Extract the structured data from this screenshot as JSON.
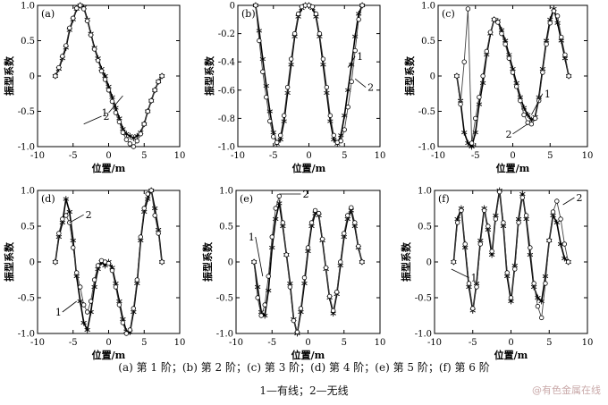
{
  "caption": {
    "panels": "(a)  第 1 阶；(b)  第 2 阶；(c)  第 3 阶；(d)  第 4 阶；(e)  第 5 阶；(f)  第 6 阶",
    "legend": "1—有线；2—无线"
  },
  "watermark": "@有色金属在线",
  "chart_data": [
    {
      "type": "line",
      "tag": "(a)",
      "xlabel": "位置/m",
      "ylabel": "振型系数",
      "xlim": [
        -10,
        10
      ],
      "ylim": [
        -1,
        1
      ],
      "xticks": [
        -10,
        -5,
        0,
        5,
        10
      ],
      "yticks": [
        -1.0,
        -0.5,
        0,
        0.5,
        1.0
      ],
      "series": [
        {
          "name": "1",
          "marker": "star",
          "x": [
            -7.5,
            -7,
            -6.5,
            -6,
            -5.5,
            -5,
            -4.5,
            -4,
            -3.5,
            -3,
            -2.5,
            -2,
            -1.5,
            -1,
            -0.5,
            0,
            0.5,
            1,
            1.5,
            2,
            2.5,
            3,
            3.5,
            4,
            4.5,
            5,
            5.5,
            6,
            6.5,
            7,
            7.5
          ],
          "y": [
            0,
            0.1,
            0.25,
            0.4,
            0.65,
            0.8,
            0.95,
            1.0,
            0.97,
            0.8,
            0.6,
            0.4,
            0.25,
            0.1,
            0,
            -0.15,
            -0.3,
            -0.45,
            -0.6,
            -0.75,
            -0.82,
            -0.85,
            -0.88,
            -0.85,
            -0.8,
            -0.68,
            -0.5,
            -0.35,
            -0.2,
            -0.08,
            0
          ]
        },
        {
          "name": "2",
          "marker": "circle",
          "x": [
            -7.5,
            -7,
            -6.5,
            -6,
            -5.5,
            -5,
            -4.5,
            -4,
            -3.5,
            -3,
            -2.5,
            -2,
            -1.5,
            -1,
            -0.5,
            0,
            0.5,
            1,
            1.5,
            2,
            2.5,
            3,
            3.5,
            4,
            4.5,
            5,
            5.5,
            6,
            6.5,
            7,
            7.5
          ],
          "y": [
            0,
            0.12,
            0.28,
            0.43,
            0.68,
            0.82,
            0.96,
            1.0,
            0.95,
            0.78,
            0.58,
            0.38,
            0.22,
            0.07,
            -0.05,
            -0.2,
            -0.36,
            -0.52,
            -0.65,
            -0.8,
            -0.9,
            -0.96,
            -1.0,
            -0.92,
            -0.82,
            -0.68,
            -0.5,
            -0.35,
            -0.2,
            -0.08,
            0
          ]
        }
      ],
      "labels": [
        {
          "text": "1",
          "x": 2.0,
          "y": -0.28,
          "lx": 0.0,
          "ly": -0.52
        },
        {
          "text": "2",
          "x": -3.5,
          "y": -0.68,
          "lx": -1.0,
          "ly": -0.57
        }
      ]
    },
    {
      "type": "line",
      "tag": "(b)",
      "xlabel": "位置/m",
      "ylabel": "振型系数",
      "xlim": [
        -10,
        10
      ],
      "ylim": [
        -1,
        0
      ],
      "xticks": [
        -10,
        -5,
        0,
        5,
        10
      ],
      "yticks": [
        -1.0,
        -0.8,
        -0.6,
        -0.4,
        -0.2,
        0
      ],
      "series": [
        {
          "name": "1",
          "marker": "star",
          "x": [
            -7.5,
            -7,
            -6.5,
            -6,
            -5.5,
            -5,
            -4.5,
            -4,
            -3.5,
            -3,
            -2.5,
            -2,
            -1.5,
            -1,
            -0.5,
            0,
            0.5,
            1,
            1.5,
            2,
            2.5,
            3,
            3.5,
            4,
            4.5,
            5,
            5.5,
            6,
            6.5,
            7,
            7.5
          ],
          "y": [
            0,
            -0.18,
            -0.38,
            -0.57,
            -0.75,
            -0.9,
            -0.98,
            -0.95,
            -0.82,
            -0.62,
            -0.42,
            -0.22,
            -0.08,
            -0.02,
            0,
            0,
            -0.02,
            -0.08,
            -0.22,
            -0.42,
            -0.62,
            -0.82,
            -0.95,
            -0.98,
            -0.92,
            -0.78,
            -0.6,
            -0.42,
            -0.22,
            -0.06,
            0
          ]
        },
        {
          "name": "2",
          "marker": "circle",
          "x": [
            -7.5,
            -7,
            -6.5,
            -6,
            -5.5,
            -5,
            -4.5,
            -4,
            -3.5,
            -3,
            -2.5,
            -2,
            -1.5,
            -1,
            -0.5,
            0,
            0.5,
            1,
            1.5,
            2,
            2.5,
            3,
            3.5,
            4,
            4.5,
            5,
            5.5,
            6,
            6.5,
            7,
            7.5
          ],
          "y": [
            0,
            -0.25,
            -0.47,
            -0.65,
            -0.82,
            -0.93,
            -0.97,
            -0.92,
            -0.78,
            -0.58,
            -0.38,
            -0.2,
            -0.06,
            -0.01,
            0,
            0,
            -0.01,
            -0.06,
            -0.2,
            -0.38,
            -0.58,
            -0.78,
            -0.92,
            -0.97,
            -0.96,
            -0.88,
            -0.72,
            -0.54,
            -0.32,
            -0.1,
            0
          ]
        }
      ],
      "labels": [
        {
          "text": "1",
          "x": 5.5,
          "y": -0.44,
          "lx": 6.5,
          "ly": -0.36
        },
        {
          "text": "2",
          "x": 6.5,
          "y": -0.52,
          "lx": 8.0,
          "ly": -0.58
        }
      ]
    },
    {
      "type": "line",
      "tag": "(c)",
      "xlabel": "位置/m",
      "ylabel": "振型系数",
      "xlim": [
        -10,
        10
      ],
      "ylim": [
        -1,
        1
      ],
      "xticks": [
        -10,
        -5,
        0,
        5,
        10
      ],
      "yticks": [
        -1.0,
        -0.5,
        0,
        0.5,
        1.0
      ],
      "series": [
        {
          "name": "1",
          "marker": "star",
          "x": [
            -7.5,
            -7,
            -6.5,
            -6,
            -5.5,
            -5,
            -4.5,
            -4,
            -3.5,
            -3,
            -2.5,
            -2,
            -1.5,
            -1,
            -0.5,
            0,
            0.5,
            1,
            1.5,
            2,
            2.5,
            3,
            3.5,
            4,
            4.5,
            5,
            5.5,
            6,
            6.5,
            7,
            7.5
          ],
          "y": [
            0,
            -0.35,
            -0.8,
            -0.95,
            -1.0,
            -0.8,
            -0.4,
            -0.1,
            0.3,
            0.6,
            0.8,
            0.78,
            0.65,
            0.5,
            0.3,
            0.1,
            -0.1,
            -0.3,
            -0.45,
            -0.55,
            -0.62,
            -0.58,
            -0.3,
            0.1,
            0.5,
            0.8,
            0.95,
            0.75,
            0.5,
            0.25,
            0
          ]
        },
        {
          "name": "2",
          "marker": "circle",
          "x": [
            -7.5,
            -7,
            -6.5,
            -6,
            -5.5,
            -5,
            -4.5,
            -4,
            -3.5,
            -3,
            -2.5,
            -2,
            -1.5,
            -1,
            -0.5,
            0,
            0.5,
            1,
            1.5,
            2,
            2.5,
            3,
            3.5,
            4,
            4.5,
            5,
            5.5,
            6,
            6.5,
            7,
            7.5
          ],
          "y": [
            0,
            -0.4,
            0.2,
            0.95,
            -0.95,
            -0.6,
            -0.3,
            0,
            0.35,
            0.62,
            0.8,
            0.76,
            0.6,
            0.45,
            0.25,
            0.05,
            -0.15,
            -0.35,
            -0.55,
            -0.66,
            -0.68,
            -0.6,
            -0.35,
            0.05,
            0.45,
            0.75,
            0.92,
            0.85,
            0.55,
            0.3,
            0
          ]
        }
      ],
      "labels": [
        {
          "text": "1",
          "x": 2.5,
          "y": -0.55,
          "lx": 4.0,
          "ly": -0.25
        },
        {
          "text": "2",
          "x": 2.0,
          "y": -0.68,
          "lx": 0.0,
          "ly": -0.82
        }
      ]
    },
    {
      "type": "line",
      "tag": "(d)",
      "xlabel": "位置/m",
      "ylabel": "振型系数",
      "xlim": [
        -10,
        10
      ],
      "ylim": [
        -1,
        1
      ],
      "xticks": [
        -10,
        -5,
        0,
        5,
        10
      ],
      "yticks": [
        -1.0,
        -0.5,
        0,
        0.5,
        1.0
      ],
      "series": [
        {
          "name": "1",
          "marker": "star",
          "x": [
            -7.5,
            -7,
            -6.5,
            -6,
            -5.5,
            -5,
            -4.5,
            -4,
            -3.5,
            -3,
            -2.5,
            -2,
            -1.5,
            -1,
            -0.5,
            0,
            0.5,
            1,
            1.5,
            2,
            2.5,
            3,
            3.5,
            4,
            4.5,
            5,
            5.5,
            6,
            6.5,
            7,
            7.5
          ],
          "y": [
            0,
            0.35,
            0.55,
            0.88,
            0.7,
            0.3,
            -0.2,
            -0.55,
            -0.85,
            -0.95,
            -0.7,
            -0.35,
            -0.1,
            0,
            -0.05,
            0,
            -0.08,
            -0.3,
            -0.55,
            -0.8,
            -0.97,
            -0.98,
            -0.7,
            -0.3,
            0.3,
            0.7,
            0.88,
            1.0,
            0.75,
            0.45,
            0
          ]
        },
        {
          "name": "2",
          "marker": "circle",
          "x": [
            -7.5,
            -7,
            -6.5,
            -6,
            -5.5,
            -5,
            -4.5,
            -4,
            -3.5,
            -3,
            -2.5,
            -2,
            -1.5,
            -1,
            -0.5,
            0,
            0.5,
            1,
            1.5,
            2,
            2.5,
            3,
            3.5,
            4,
            4.5,
            5,
            5.5,
            6,
            6.5,
            7,
            7.5
          ],
          "y": [
            0,
            0.4,
            0.6,
            0.65,
            0.55,
            0.2,
            -0.15,
            -0.35,
            -0.6,
            -0.7,
            -0.55,
            -0.25,
            -0.05,
            0.02,
            0,
            -0.02,
            -0.12,
            -0.35,
            -0.6,
            -0.85,
            -1.0,
            -0.95,
            -0.65,
            -0.25,
            0.35,
            0.75,
            0.95,
            1.0,
            0.65,
            0.4,
            0
          ]
        }
      ],
      "labels": [
        {
          "text": "1",
          "x": -4.5,
          "y": -0.55,
          "lx": -6.5,
          "ly": -0.7
        },
        {
          "text": "2",
          "x": -5.5,
          "y": 0.55,
          "lx": -3.5,
          "ly": 0.66
        }
      ]
    },
    {
      "type": "line",
      "tag": "(e)",
      "xlabel": "位置/m",
      "ylabel": "振型系数",
      "xlim": [
        -10,
        10
      ],
      "ylim": [
        -1,
        1
      ],
      "xticks": [
        -10,
        -5,
        0,
        5,
        10
      ],
      "yticks": [
        -1.0,
        -0.5,
        0,
        0.5,
        1.0
      ],
      "series": [
        {
          "name": "1",
          "marker": "star",
          "x": [
            -7.5,
            -7,
            -6.5,
            -6,
            -5.5,
            -5,
            -4.5,
            -4,
            -3.5,
            -3,
            -2.5,
            -2,
            -1.5,
            -1,
            -0.5,
            0,
            0.5,
            1,
            1.5,
            2,
            2.5,
            3,
            3.5,
            4,
            4.5,
            5,
            5.5,
            6,
            6.5,
            7,
            7.5
          ],
          "y": [
            0,
            -0.35,
            -0.7,
            -0.75,
            -0.4,
            0.2,
            0.6,
            0.82,
            0.5,
            0.1,
            -0.3,
            -0.8,
            -1.0,
            -0.7,
            -0.3,
            0.15,
            0.5,
            0.68,
            0.65,
            0.3,
            -0.1,
            -0.5,
            -0.72,
            -0.45,
            -0.05,
            0.35,
            0.6,
            0.72,
            0.5,
            0.2,
            0
          ]
        },
        {
          "name": "2",
          "marker": "circle",
          "x": [
            -7.5,
            -7,
            -6.5,
            -6,
            -5.5,
            -5,
            -4.5,
            -4,
            -3.5,
            -3,
            -2.5,
            -2,
            -1.5,
            -1,
            -0.5,
            0,
            0.5,
            1,
            1.5,
            2,
            2.5,
            3,
            3.5,
            4,
            4.5,
            5,
            5.5,
            6,
            6.5,
            7,
            7.5
          ],
          "y": [
            0,
            -0.5,
            -0.75,
            -0.6,
            -0.2,
            0.35,
            0.75,
            0.92,
            0.55,
            0.1,
            -0.35,
            -0.82,
            -0.98,
            -0.65,
            -0.22,
            0.2,
            0.55,
            0.72,
            0.68,
            0.32,
            -0.08,
            -0.48,
            -0.68,
            -0.42,
            0,
            0.4,
            0.65,
            0.76,
            0.55,
            0.22,
            0
          ]
        }
      ],
      "labels": [
        {
          "text": "1",
          "x": -6.3,
          "y": -0.2,
          "lx": -7.3,
          "ly": 0.35
        },
        {
          "text": "2",
          "x": -4.0,
          "y": 0.95,
          "lx": -1.0,
          "ly": 0.95
        }
      ]
    },
    {
      "type": "line",
      "tag": "(f)",
      "xlabel": "位置/m",
      "ylabel": "振型系数",
      "xlim": [
        -10,
        10
      ],
      "ylim": [
        -1,
        1
      ],
      "xticks": [
        -10,
        -5,
        0,
        5,
        10
      ],
      "yticks": [
        -1.0,
        -0.5,
        0,
        0.5,
        1.0
      ],
      "series": [
        {
          "name": "1",
          "marker": "star",
          "x": [
            -7.5,
            -7,
            -6.5,
            -6,
            -5.5,
            -5,
            -4.5,
            -4,
            -3.5,
            -3,
            -2.5,
            -2,
            -1.5,
            -1,
            -0.5,
            0,
            0.5,
            1,
            1.5,
            2,
            2.5,
            3,
            3.5,
            4,
            4.5,
            5,
            5.5,
            6,
            6.5,
            7,
            7.5
          ],
          "y": [
            0,
            0.6,
            0.75,
            0.2,
            -0.35,
            -0.68,
            -0.3,
            0.3,
            0.75,
            0.45,
            0.1,
            0.65,
            1.0,
            0.5,
            -0.2,
            -0.55,
            -0.05,
            0.6,
            0.95,
            0.6,
            0.1,
            -0.35,
            -0.5,
            -0.55,
            -0.2,
            0.3,
            0.65,
            0.55,
            0.25,
            0.05,
            0
          ]
        },
        {
          "name": "2",
          "marker": "circle",
          "x": [
            -7.5,
            -7,
            -6.5,
            -6,
            -5.5,
            -5,
            -4.5,
            -4,
            -3.5,
            -3,
            -2.5,
            -2,
            -1.5,
            -1,
            -0.5,
            0,
            0.5,
            1,
            1.5,
            2,
            2.5,
            3,
            3.5,
            4,
            4.5,
            5,
            5.5,
            6,
            6.5,
            7,
            7.5
          ],
          "y": [
            0,
            0.55,
            0.72,
            0.25,
            -0.3,
            -0.65,
            -0.35,
            0.25,
            0.72,
            0.5,
            0.15,
            0.6,
            0.98,
            0.55,
            -0.15,
            -0.5,
            -0.1,
            0.55,
            0.9,
            0.65,
            0.2,
            -0.3,
            -0.62,
            -0.78,
            -0.3,
            0.3,
            0.7,
            0.85,
            0.6,
            0.25,
            0
          ]
        }
      ],
      "labels": [
        {
          "text": "1",
          "x": -7.8,
          "y": -0.1,
          "lx": -5.5,
          "ly": -0.22
        },
        {
          "text": "2",
          "x": 6.8,
          "y": 0.8,
          "lx": 8.3,
          "ly": 0.9
        }
      ]
    }
  ]
}
